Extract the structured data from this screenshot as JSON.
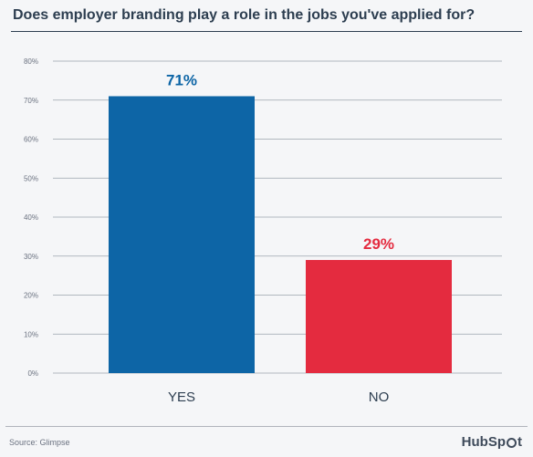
{
  "chart_data": {
    "type": "bar",
    "title": "Does employer branding play a role in the jobs you've applied for?",
    "categories": [
      "YES",
      "NO"
    ],
    "values": [
      71,
      29
    ],
    "value_labels": [
      "71%",
      "29%"
    ],
    "colors": [
      "#0d65a6",
      "#e42b3f"
    ],
    "ylim": [
      0,
      80
    ],
    "yticks": [
      0,
      10,
      20,
      30,
      40,
      50,
      60,
      70,
      80
    ],
    "ytick_labels": [
      "0%",
      "10%",
      "20%",
      "30%",
      "40%",
      "50%",
      "60%",
      "70%",
      "80%"
    ],
    "grid": true,
    "xlabel": "",
    "ylabel": ""
  },
  "footer": {
    "source": "Source: Glimpse",
    "logo_text_a": "HubSp",
    "logo_text_b": "t"
  },
  "colors": {
    "title": "#2d3e50",
    "grid": "#9aa3ad",
    "tick_text": "#6b7280"
  }
}
